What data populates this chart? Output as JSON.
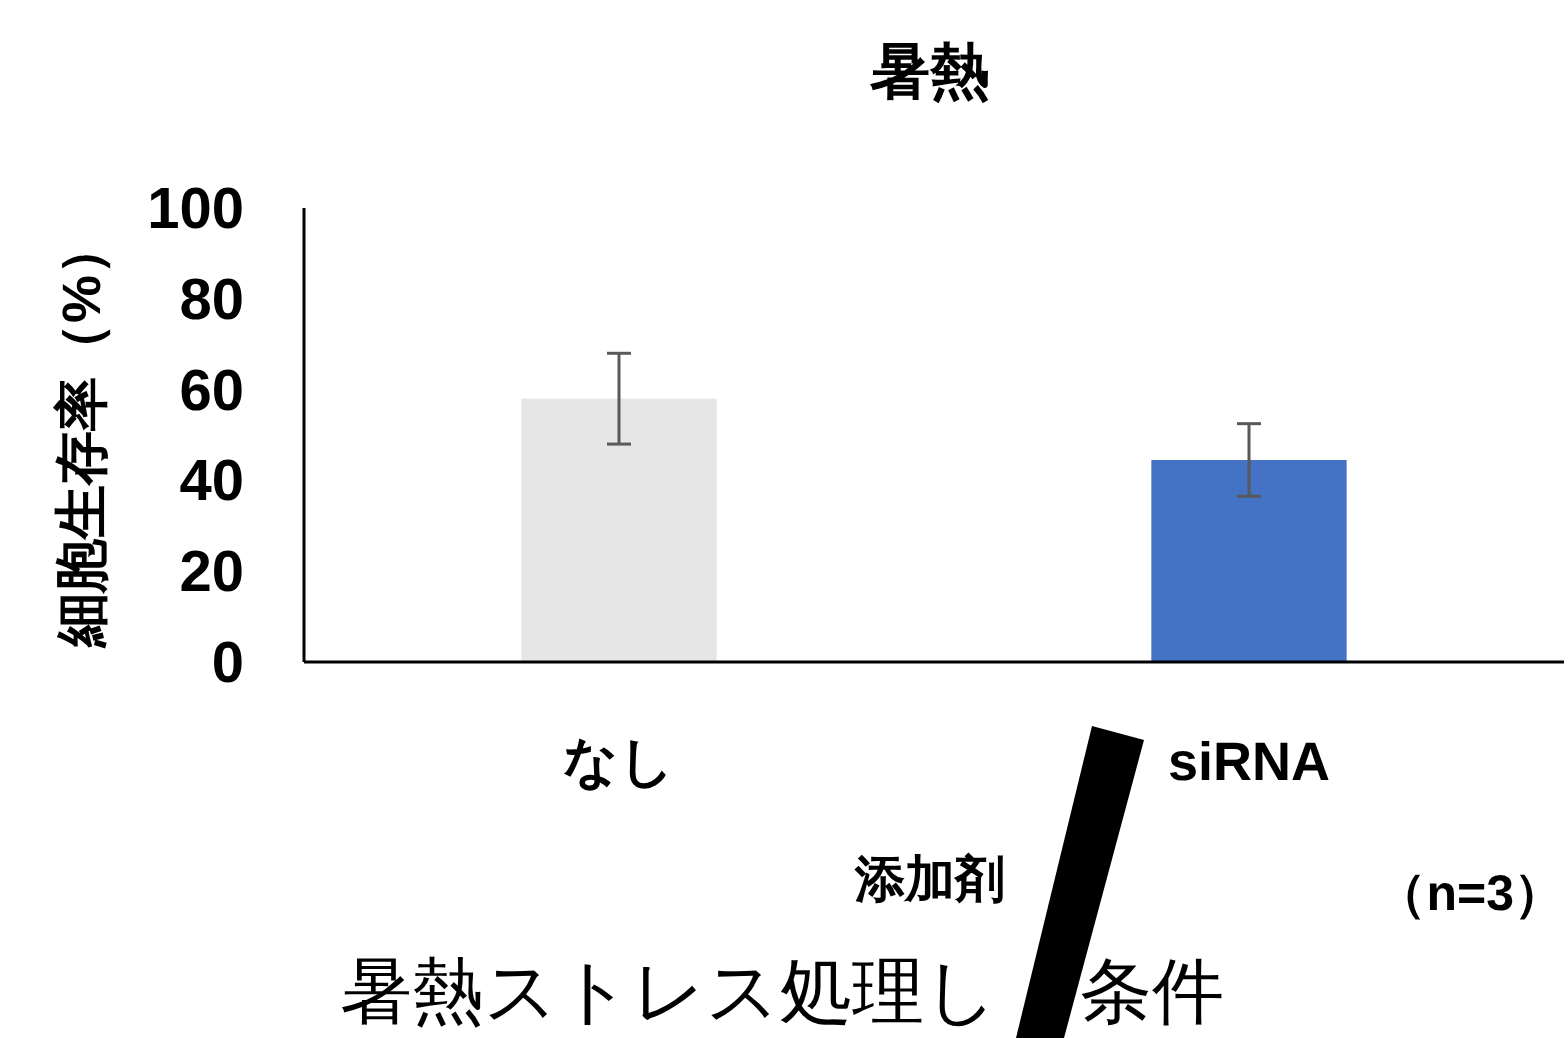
{
  "chart_data": {
    "type": "bar",
    "title": "暑熱",
    "xlabel": "添加剤",
    "ylabel": "細胞生存率（%）",
    "categories": [
      "なし",
      "siRNA"
    ],
    "values": [
      58,
      44.5
    ],
    "errors": [
      10,
      8
    ],
    "colors": [
      "#e7e6e6",
      "#4472c4"
    ],
    "ylim": [
      0,
      100
    ],
    "yticks": [
      0,
      20,
      40,
      60,
      80,
      100
    ],
    "grid": false,
    "annotations": [
      "（n=3）",
      "暑熱ストレス処理し",
      "条件"
    ]
  }
}
